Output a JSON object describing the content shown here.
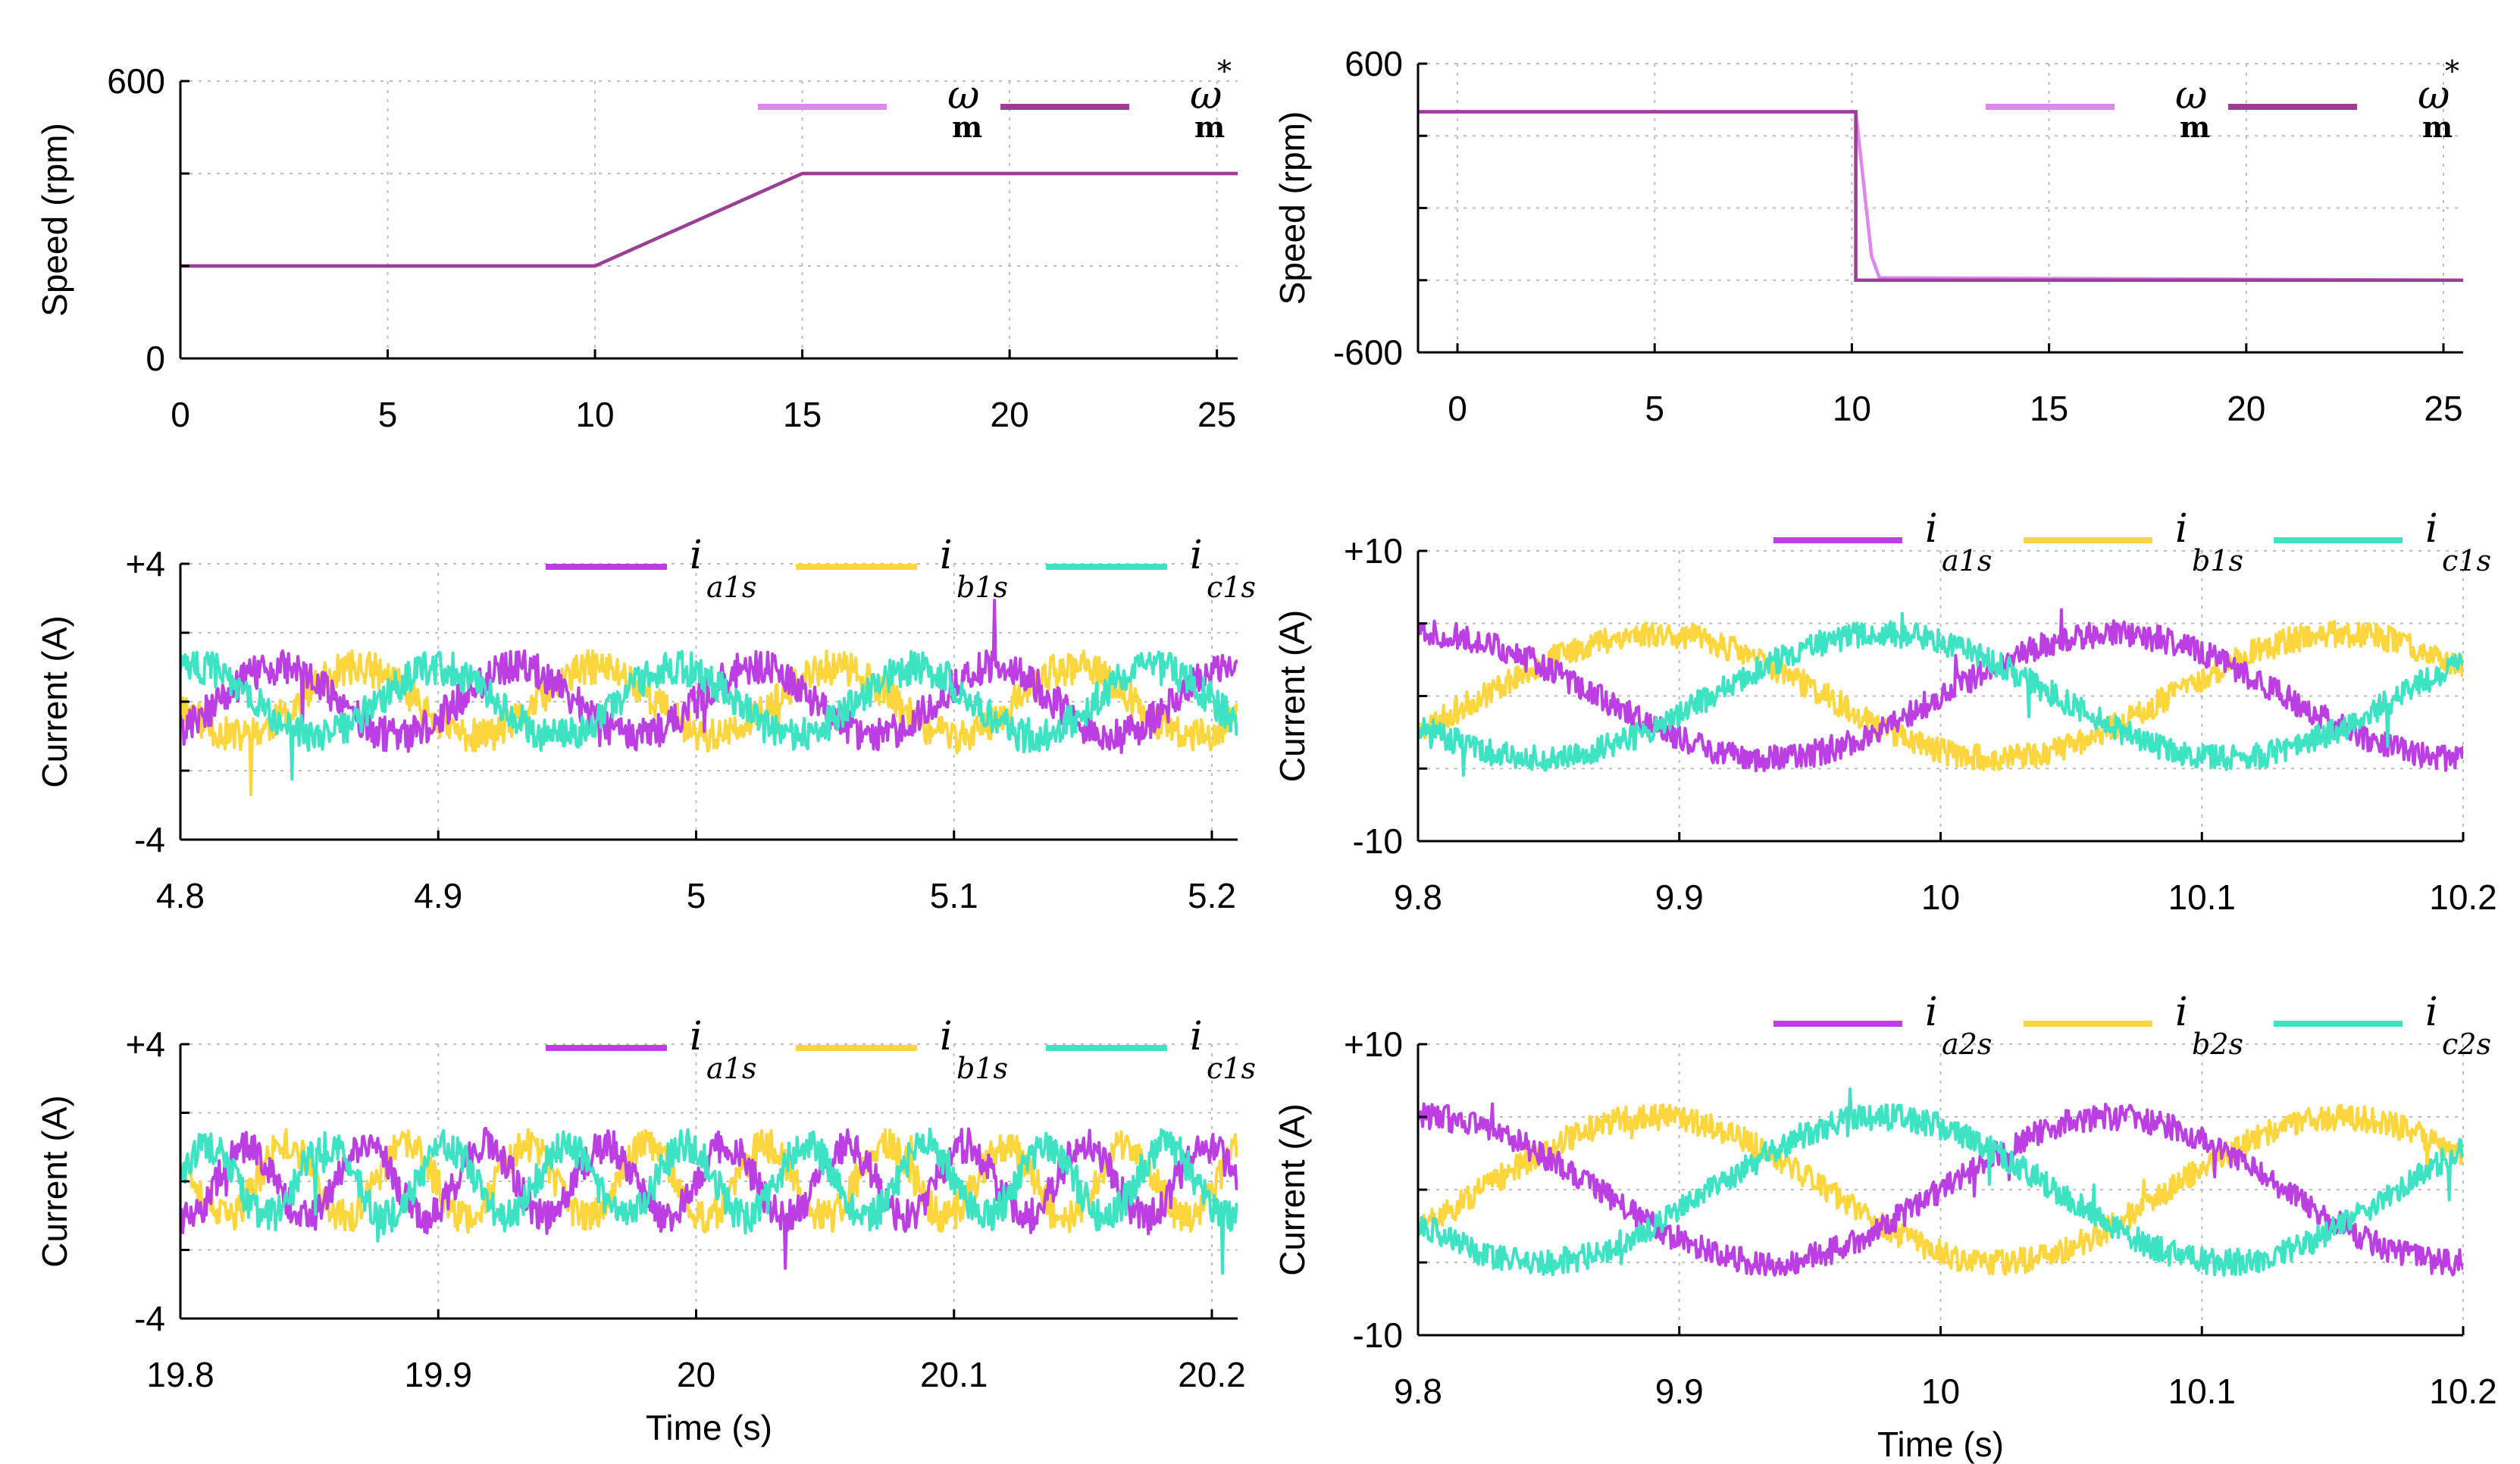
{
  "colors": {
    "omega_m": "#df86ef",
    "omega_ref": "#9a3f93",
    "ia": "#bb3fe3",
    "ib": "#fdd53c",
    "ic": "#3ee3c3",
    "axis": "#000000",
    "grid": "#bdbdbd"
  },
  "chart_data": [
    {
      "id": "speed-left",
      "type": "line",
      "ylabel": "Speed (rpm)",
      "xlabel": "",
      "xlim": [
        0,
        25.5
      ],
      "ylim": [
        0,
        600
      ],
      "xticks": [
        0,
        5,
        10,
        15,
        20,
        25
      ],
      "xtick_labels": [
        "0",
        "5",
        "10",
        "15",
        "20",
        "25"
      ],
      "yticks": [
        0,
        600
      ],
      "ytick_labels": [
        "0",
        "600"
      ],
      "ygrid": [
        0,
        200,
        400,
        600
      ],
      "legend": [
        {
          "key": "omega_m",
          "main": "ω",
          "sub": "m",
          "sup": ""
        },
        {
          "key": "omega_ref",
          "main": "ω",
          "sub": "m",
          "sup": "*"
        }
      ],
      "series": [
        {
          "name": "ω_m",
          "color_key": "omega_m",
          "x": [
            0,
            10,
            15,
            25.5
          ],
          "y": [
            200,
            200,
            400,
            400
          ]
        },
        {
          "name": "ω_m*",
          "color_key": "omega_ref",
          "x": [
            0,
            10,
            15,
            25.5
          ],
          "y": [
            200,
            200,
            400,
            400
          ]
        }
      ]
    },
    {
      "id": "speed-right",
      "type": "line",
      "ylabel": "Speed (rpm)",
      "xlabel": "",
      "xlim": [
        -1,
        25.5
      ],
      "ylim": [
        -600,
        600
      ],
      "xticks": [
        0,
        5,
        10,
        15,
        20,
        25
      ],
      "xtick_labels": [
        "0",
        "5",
        "10",
        "15",
        "20",
        "25"
      ],
      "yticks": [
        -600,
        600
      ],
      "ytick_labels": [
        "-600",
        "600"
      ],
      "ygrid": [
        -600,
        -300,
        0,
        300,
        600
      ],
      "legend": [
        {
          "key": "omega_m",
          "main": "ω",
          "sub": "m",
          "sup": ""
        },
        {
          "key": "omega_ref",
          "main": "ω",
          "sub": "m",
          "sup": "*"
        }
      ],
      "series": [
        {
          "name": "ω_m",
          "color_key": "omega_m",
          "x": [
            -1,
            10.1,
            10.3,
            10.5,
            10.7,
            25.5
          ],
          "y": [
            400,
            400,
            100,
            -200,
            -290,
            -300
          ]
        },
        {
          "name": "ω_m*",
          "color_key": "omega_ref",
          "x": [
            -1,
            10.1,
            10.1,
            25.5
          ],
          "y": [
            400,
            400,
            -300,
            -300
          ]
        }
      ]
    },
    {
      "id": "current-left-1",
      "type": "line",
      "ylabel": "Current (A)",
      "xlabel": "",
      "xlim": [
        4.8,
        5.21
      ],
      "ylim": [
        -4,
        4
      ],
      "xticks": [
        4.8,
        4.9,
        5.0,
        5.1,
        5.2
      ],
      "xtick_labels": [
        "4.8",
        "4.9",
        "5",
        "5.1",
        "5.2"
      ],
      "yticks": [
        -4,
        4
      ],
      "ytick_labels": [
        "-4",
        "+4"
      ],
      "ygrid": [
        -4,
        -2,
        0,
        2,
        4
      ],
      "legend": [
        {
          "key": "ia",
          "main": "i",
          "sub": "a1s",
          "sup": ""
        },
        {
          "key": "ib",
          "main": "i",
          "sub": "b1s",
          "sup": ""
        },
        {
          "key": "ic",
          "main": "i",
          "sub": "c1s",
          "sup": ""
        }
      ],
      "wave": {
        "amplitude": 1.0,
        "frequency_hz": 10.8,
        "noise": 0.5,
        "seed": 11
      }
    },
    {
      "id": "current-right-1",
      "type": "line",
      "ylabel": "Current (A)",
      "xlabel": "",
      "xlim": [
        9.8,
        10.2
      ],
      "ylim": [
        -10,
        10
      ],
      "xticks": [
        9.8,
        9.9,
        10.0,
        10.1,
        10.2
      ],
      "xtick_labels": [
        "9.8",
        "9.9",
        "10",
        "10.1",
        "10.2"
      ],
      "yticks": [
        -10,
        10
      ],
      "ytick_labels": [
        "-10",
        "+10"
      ],
      "ygrid": [
        -10,
        -5,
        0,
        5,
        10
      ],
      "legend": [
        {
          "key": "ia",
          "main": "i",
          "sub": "a1s",
          "sup": ""
        },
        {
          "key": "ib",
          "main": "i",
          "sub": "b1s",
          "sup": ""
        },
        {
          "key": "ic",
          "main": "i",
          "sub": "c1s",
          "sup": ""
        }
      ],
      "wave": {
        "amplitude": 4.3,
        "frequency_hz": 3.8,
        "noise": 0.9,
        "seed": 23
      }
    },
    {
      "id": "current-left-2",
      "type": "line",
      "ylabel": "Current (A)",
      "xlabel": "Time (s)",
      "xlim": [
        19.8,
        20.21
      ],
      "ylim": [
        -4,
        4
      ],
      "xticks": [
        19.8,
        19.9,
        20.0,
        20.1,
        20.2
      ],
      "xtick_labels": [
        "19.8",
        "19.9",
        "20",
        "20.1",
        "20.2"
      ],
      "yticks": [
        -4,
        4
      ],
      "ytick_labels": [
        "-4",
        "+4"
      ],
      "ygrid": [
        -4,
        -2,
        0,
        2,
        4
      ],
      "legend": [
        {
          "key": "ia",
          "main": "i",
          "sub": "a1s",
          "sup": ""
        },
        {
          "key": "ib",
          "main": "i",
          "sub": "b1s",
          "sup": ""
        },
        {
          "key": "ic",
          "main": "i",
          "sub": "c1s",
          "sup": ""
        }
      ],
      "wave": {
        "amplitude": 1.05,
        "frequency_hz": 21.5,
        "noise": 0.5,
        "seed": 37
      }
    },
    {
      "id": "current-right-2",
      "type": "line",
      "ylabel": "Current (A)",
      "xlabel": "Time (s)",
      "xlim": [
        9.8,
        10.2
      ],
      "ylim": [
        -10,
        10
      ],
      "xticks": [
        9.8,
        9.9,
        10.0,
        10.1,
        10.2
      ],
      "xtick_labels": [
        "9.8",
        "9.9",
        "10",
        "10.1",
        "10.2"
      ],
      "yticks": [
        -10,
        10
      ],
      "ytick_labels": [
        "-10",
        "+10"
      ],
      "ygrid": [
        -10,
        -5,
        0,
        5,
        10
      ],
      "legend": [
        {
          "key": "ia",
          "main": "i",
          "sub": "a2s",
          "sup": ""
        },
        {
          "key": "ib",
          "main": "i",
          "sub": "b2s",
          "sup": ""
        },
        {
          "key": "ic",
          "main": "i",
          "sub": "c2s",
          "sup": ""
        }
      ],
      "wave": {
        "amplitude": 5.0,
        "frequency_hz": 3.8,
        "noise": 0.9,
        "seed": 51
      }
    }
  ]
}
